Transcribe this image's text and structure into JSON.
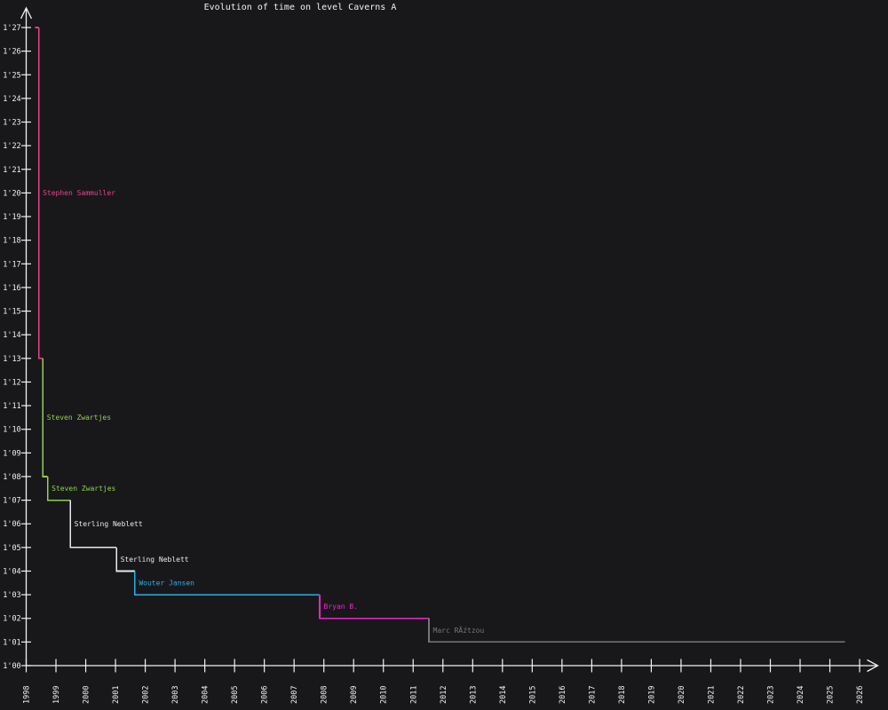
{
  "title": "Evolution of time on level Caverns A",
  "colors": {
    "background": "#18181b",
    "axis": "#f2f2f2",
    "tick_label": "#f2f2f2",
    "title_text": "#f0f0f0"
  },
  "chart_data": {
    "type": "line",
    "subtype": "step-record-progression",
    "title": "Evolution of time on level Caverns A",
    "grid": false,
    "legend": "none",
    "x_axis": {
      "unit": "year",
      "ticks": [
        1998,
        1999,
        2000,
        2001,
        2002,
        2003,
        2004,
        2005,
        2006,
        2007,
        2008,
        2009,
        2010,
        2011,
        2012,
        2013,
        2014,
        2015,
        2016,
        2017,
        2018,
        2019,
        2020,
        2021,
        2022,
        2023,
        2024,
        2025,
        2026
      ],
      "range": [
        1998,
        2026.7
      ]
    },
    "y_axis": {
      "unit": "time (minutes'seconds)",
      "ticks": [
        "1'00",
        "1'01",
        "1'02",
        "1'03",
        "1'04",
        "1'05",
        "1'06",
        "1'07",
        "1'08",
        "1'09",
        "1'10",
        "1'11",
        "1'12",
        "1'13",
        "1'14",
        "1'15",
        "1'16",
        "1'17",
        "1'18",
        "1'19",
        "1'20",
        "1'21",
        "1'22",
        "1'23",
        "1'24",
        "1'25",
        "1'26",
        "1'27"
      ],
      "seconds_range": [
        60,
        87
      ]
    },
    "initial": {
      "time": "1'27",
      "seconds": 87,
      "year": 1998.3
    },
    "records": [
      {
        "player": "Stephen Sammuller",
        "time": "1'13",
        "seconds": 73,
        "year": 1998.42,
        "color": "#e8428c"
      },
      {
        "player": "Steven Zwartjes",
        "time": "1'08",
        "seconds": 68,
        "year": 1998.56,
        "color": "#92d14e"
      },
      {
        "player": "Steven Zwartjes",
        "time": "1'07",
        "seconds": 67,
        "year": 1998.72,
        "color": "#92d14e"
      },
      {
        "player": "Sterling Neblett",
        "time": "1'05",
        "seconds": 65,
        "year": 1999.48,
        "color": "#e9e9e9"
      },
      {
        "player": "Sterling Neblett",
        "time": "1'04",
        "seconds": 64,
        "year": 2001.03,
        "color": "#e9e9e9"
      },
      {
        "player": "Wouter Jansen",
        "time": "1'03",
        "seconds": 63,
        "year": 2001.65,
        "color": "#29b0ea"
      },
      {
        "player": "Bryan B.",
        "time": "1'02",
        "seconds": 62,
        "year": 2007.86,
        "color": "#ee22cc"
      },
      {
        "player": "Marc RĂźtzou",
        "time": "1'01",
        "seconds": 61,
        "year": 2011.53,
        "color": "#777777"
      }
    ],
    "current_record_extends_to_year": 2025.5
  }
}
